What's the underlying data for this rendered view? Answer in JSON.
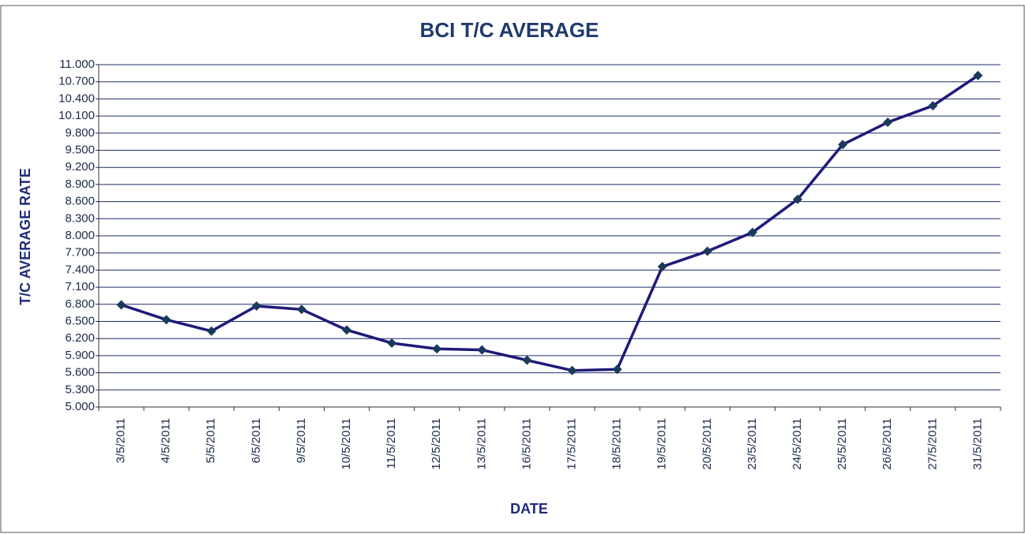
{
  "chart_data": {
    "type": "line",
    "title": "BCI T/C AVERAGE",
    "x_label": "DATE",
    "y_label": "T/C AVERAGE  RATE",
    "categories": [
      "3/5/2011",
      "4/5/2011",
      "5/5/2011",
      "6/5/2011",
      "9/5/2011",
      "10/5/2011",
      "11/5/2011",
      "12/5/2011",
      "13/5/2011",
      "16/5/2011",
      "17/5/2011",
      "18/5/2011",
      "19/5/2011",
      "20/5/2011",
      "23/5/2011",
      "24/5/2011",
      "25/5/2011",
      "26/5/2011",
      "27/5/2011",
      "31/5/2011"
    ],
    "values": [
      6790,
      6530,
      6330,
      6770,
      6710,
      6350,
      6120,
      6020,
      6000,
      5820,
      5640,
      5660,
      7460,
      7730,
      8060,
      8640,
      9600,
      9990,
      10280,
      10810
    ],
    "color": "#1f1a7a",
    "marker_color": "#1a3a5a",
    "grid": true,
    "ylim": [
      5000,
      11000
    ],
    "yticks": [
      {
        "value": 5000,
        "label": "5.000"
      },
      {
        "value": 5300,
        "label": "5.300"
      },
      {
        "value": 5600,
        "label": "5.600"
      },
      {
        "value": 5900,
        "label": "5.900"
      },
      {
        "value": 6200,
        "label": "6.200"
      },
      {
        "value": 6500,
        "label": "6.500"
      },
      {
        "value": 6800,
        "label": "6.800"
      },
      {
        "value": 7100,
        "label": "7.100"
      },
      {
        "value": 7400,
        "label": "7.400"
      },
      {
        "value": 7700,
        "label": "7.700"
      },
      {
        "value": 8000,
        "label": "8.000"
      },
      {
        "value": 8300,
        "label": "8.300"
      },
      {
        "value": 8600,
        "label": "8.600"
      },
      {
        "value": 8900,
        "label": "8.900"
      },
      {
        "value": 9200,
        "label": "9.200"
      },
      {
        "value": 9500,
        "label": "9.500"
      },
      {
        "value": 9800,
        "label": "9.800"
      },
      {
        "value": 10100,
        "label": "10.100"
      },
      {
        "value": 10400,
        "label": "10.400"
      },
      {
        "value": 10700,
        "label": "10.700"
      },
      {
        "value": 11000,
        "label": "11.000"
      }
    ]
  }
}
